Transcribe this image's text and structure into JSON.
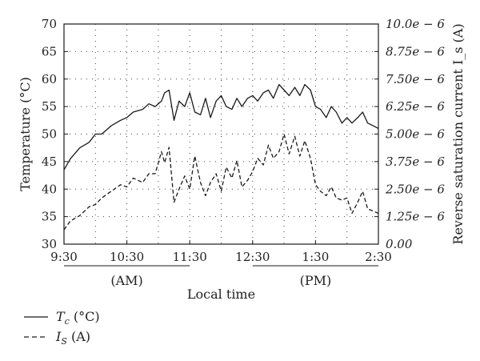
{
  "chart_data": {
    "type": "line",
    "xlabel": "Local time",
    "ylabel_left": "Temperature (°C)",
    "ylabel_right": "Reverse saturation current I_s (A)",
    "x_ticks": [
      "9:30",
      "10:30",
      "11:30",
      "12:30",
      "1:30",
      "2:30"
    ],
    "y_left": {
      "min": 30,
      "max": 70,
      "ticks": [
        "30",
        "35",
        "40",
        "45",
        "50",
        "55",
        "60",
        "65",
        "70"
      ]
    },
    "y_right": {
      "min": 0,
      "max": 1e-05,
      "ticks": [
        "0.00",
        "1.25e − 6",
        "2.50e − 6",
        "3.75e − 6",
        "5.00e − 6",
        "6.25e − 6",
        "7.50e − 6",
        "8.75e − 6",
        "10.0e − 6"
      ]
    },
    "period_labels": {
      "am": "(AM)",
      "pm": "(PM)"
    },
    "grid": "dotted",
    "legend_position": "bottom-left",
    "series": [
      {
        "name": "T_c (°C)",
        "axis": "left",
        "style": "solid",
        "x_hours": [
          9.5,
          9.6,
          9.75,
          9.9,
          10.0,
          10.1,
          10.25,
          10.4,
          10.5,
          10.6,
          10.75,
          10.85,
          10.95,
          11.05,
          11.1,
          11.17,
          11.25,
          11.33,
          11.42,
          11.5,
          11.58,
          11.67,
          11.75,
          11.83,
          11.92,
          12.0,
          12.08,
          12.17,
          12.25,
          12.33,
          12.42,
          12.5,
          12.58,
          12.67,
          12.75,
          12.83,
          12.92,
          13.0,
          13.08,
          13.17,
          13.25,
          13.33,
          13.42,
          13.5,
          13.58,
          13.67,
          13.75,
          13.83,
          13.92,
          14.0,
          14.08,
          14.17,
          14.25,
          14.33,
          14.42,
          14.5
        ],
        "values": [
          43.5,
          45.5,
          47.5,
          48.5,
          50,
          50,
          51.5,
          52.5,
          53,
          54,
          54.5,
          55.5,
          55,
          56,
          57.5,
          58,
          52.5,
          56,
          55,
          57.5,
          54,
          53.5,
          56.5,
          53,
          56,
          57,
          55,
          54.5,
          56.5,
          55,
          56.5,
          57,
          56,
          57.5,
          58,
          56.5,
          59,
          58,
          57,
          58.5,
          57,
          59,
          58,
          55,
          54.5,
          53,
          55,
          54,
          52,
          53,
          52,
          53,
          54,
          52,
          51.5,
          51
        ],
        "color": "#1a1a1a"
      },
      {
        "name": "I_S (A)",
        "axis": "right",
        "style": "dashed",
        "x_hours": [
          9.5,
          9.6,
          9.75,
          9.9,
          10.0,
          10.1,
          10.25,
          10.4,
          10.5,
          10.6,
          10.75,
          10.85,
          10.95,
          11.05,
          11.1,
          11.17,
          11.25,
          11.33,
          11.42,
          11.5,
          11.58,
          11.67,
          11.75,
          11.83,
          11.92,
          12.0,
          12.08,
          12.17,
          12.25,
          12.33,
          12.42,
          12.5,
          12.58,
          12.67,
          12.75,
          12.83,
          12.92,
          13.0,
          13.08,
          13.17,
          13.25,
          13.33,
          13.42,
          13.5,
          13.58,
          13.67,
          13.75,
          13.83,
          13.92,
          14.0,
          14.08,
          14.17,
          14.25,
          14.33,
          14.42,
          14.5
        ],
        "values": [
          6.5e-07,
          1.05e-06,
          1.3e-06,
          1.7e-06,
          1.8e-06,
          2.1e-06,
          2.4e-06,
          2.7e-06,
          2.6e-06,
          3e-06,
          2.8e-06,
          3.2e-06,
          3.2e-06,
          4.2e-06,
          3.7e-06,
          4.4e-06,
          1.9e-06,
          2.5e-06,
          3.1e-06,
          2.5e-06,
          4e-06,
          2.8e-06,
          2.2e-06,
          2.8e-06,
          3.2e-06,
          2.4e-06,
          3.5e-06,
          3e-06,
          3.8e-06,
          2.6e-06,
          2.9e-06,
          3.3e-06,
          3.9e-06,
          3.6e-06,
          4.5e-06,
          3.9e-06,
          4.2e-06,
          5e-06,
          4.1e-06,
          4.9e-06,
          4e-06,
          4.7e-06,
          3.9e-06,
          2.7e-06,
          2.4e-06,
          2.2e-06,
          2.6e-06,
          2.1e-06,
          2e-06,
          2.1e-06,
          1.4e-06,
          1.9e-06,
          2.4e-06,
          1.6e-06,
          1.5e-06,
          1.4e-06
        ],
        "color": "#1a1a1a"
      }
    ]
  },
  "legend": {
    "tc_label": "T",
    "tc_sub": "c",
    "tc_unit": " (°C)",
    "is_label": "I",
    "is_sub": "S",
    "is_unit": " (A)"
  }
}
